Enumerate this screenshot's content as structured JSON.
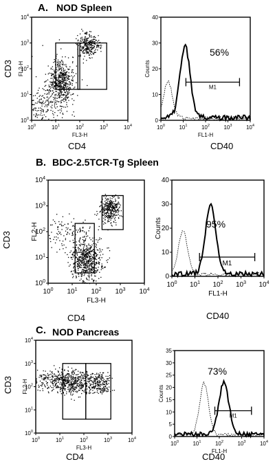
{
  "panels": [
    {
      "letter": "A.",
      "title": "NOD Spleen",
      "dot": {
        "y_outer": "CD3",
        "y_inner": "FL2-H",
        "x_inner": "FL3-H",
        "x_outer": "CD4",
        "gates": [
          "R3",
          "R2"
        ]
      },
      "hist": {
        "y_label": "Counts",
        "x_inner": "FL1-H",
        "x_outer": "CD40",
        "percent": "56%",
        "marker": "M1",
        "y_ticks": [
          "0",
          "10",
          "20",
          "30",
          "40"
        ]
      },
      "x_ticks": [
        "10^0",
        "10^1",
        "10^2",
        "10^3",
        "10^4"
      ],
      "y_ticks": [
        "10^0",
        "10^1",
        "10^2",
        "10^3",
        "10^4"
      ]
    },
    {
      "letter": "B.",
      "title": "BDC-2.5TCR-Tg Spleen",
      "dot": {
        "y_outer": "CD3",
        "y_inner": "FL2-H",
        "x_inner": "FL3-H",
        "x_outer": "CD4",
        "gates": [
          "R2"
        ]
      },
      "hist": {
        "y_label": "Counts",
        "x_inner": "FL1-H",
        "x_outer": "CD40",
        "percent": "95%",
        "marker": "M1",
        "y_ticks": [
          "0",
          "10",
          "20",
          "30",
          "40"
        ]
      },
      "x_ticks": [
        "10^0",
        "10^1",
        "10^2",
        "10^3",
        "10^4"
      ],
      "y_ticks": [
        "10^0",
        "10^1",
        "10^2",
        "10^3",
        "10^4"
      ]
    },
    {
      "letter": "C.",
      "title": "NOD Pancreas",
      "dot": {
        "y_outer": "CD3",
        "y_inner": "FL2-H",
        "x_inner": "FL3-H",
        "x_outer": "CD4",
        "gates": [
          "R3",
          "R2"
        ]
      },
      "hist": {
        "y_label": "Counts",
        "x_inner": "FL1-H",
        "x_outer": "CD40",
        "percent": "73%",
        "marker": "M1",
        "y_ticks": [
          "0",
          "5",
          "10",
          "15",
          "20",
          "25",
          "30",
          "35"
        ]
      },
      "x_ticks": [
        "10^0",
        "10^1",
        "10^2",
        "10^3",
        "10^4"
      ],
      "y_ticks": [
        "10^0",
        "10^1",
        "10^2",
        "10^3",
        "10^4"
      ]
    }
  ]
}
